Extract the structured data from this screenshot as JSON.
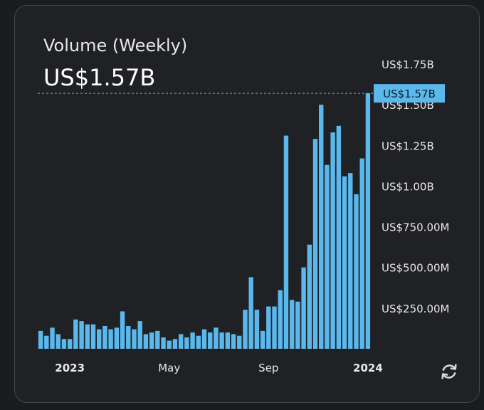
{
  "card": {
    "title": "Volume (Weekly)",
    "value": "US$1.57B",
    "refresh_icon": "refresh-icon"
  },
  "colors": {
    "background": "#1b1c20",
    "card": "#202125",
    "bar": "#5bb8ec",
    "crosshair": "#5bb8ec",
    "label": "#e8e8ea"
  },
  "chart_data": {
    "type": "bar",
    "unit": "USD",
    "ylim": [
      0,
      1.75
    ],
    "y_ticks": [
      {
        "value": 0.25,
        "label": "US$250.00M"
      },
      {
        "value": 0.5,
        "label": "US$500.00M"
      },
      {
        "value": 0.75,
        "label": "US$750.00M"
      },
      {
        "value": 1.0,
        "label": "US$1.00B"
      },
      {
        "value": 1.25,
        "label": "US$1.25B"
      },
      {
        "value": 1.5,
        "label": "US$1.50B"
      },
      {
        "value": 1.75,
        "label": "US$1.75B"
      }
    ],
    "x_ticks": [
      {
        "index": 5,
        "label": "2023"
      },
      {
        "index": 22,
        "label": "May"
      },
      {
        "index": 39,
        "label": "Sep"
      },
      {
        "index": 56,
        "label": "2024"
      }
    ],
    "highlight": {
      "value": 1.57,
      "label": "US$1.57B"
    },
    "values": [
      0.11,
      0.08,
      0.13,
      0.09,
      0.06,
      0.06,
      0.18,
      0.17,
      0.15,
      0.15,
      0.12,
      0.14,
      0.12,
      0.13,
      0.23,
      0.14,
      0.12,
      0.17,
      0.09,
      0.1,
      0.11,
      0.07,
      0.05,
      0.06,
      0.09,
      0.07,
      0.1,
      0.08,
      0.12,
      0.1,
      0.13,
      0.1,
      0.1,
      0.09,
      0.08,
      0.24,
      0.44,
      0.24,
      0.11,
      0.26,
      0.26,
      0.36,
      1.31,
      0.3,
      0.29,
      0.5,
      0.64,
      1.29,
      1.5,
      1.13,
      1.33,
      1.37,
      1.06,
      1.08,
      0.95,
      1.17,
      1.57
    ]
  }
}
